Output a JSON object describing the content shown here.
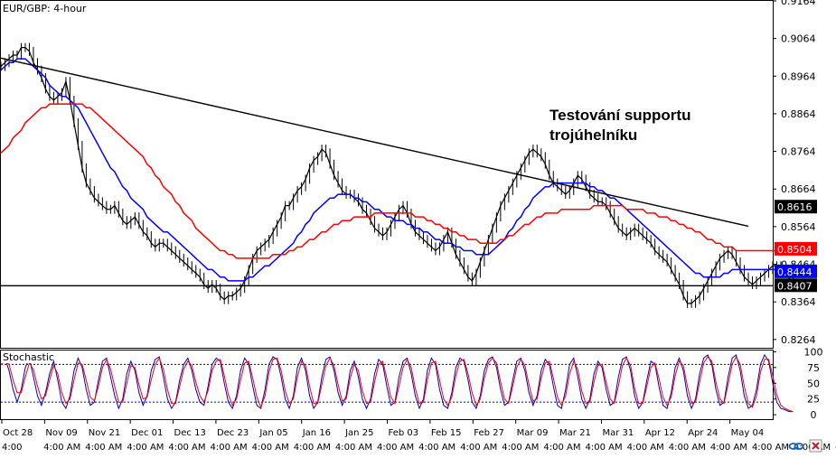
{
  "chart_data": {
    "type": "line",
    "symbol_label": "EUR/GBP: 4-hour",
    "indicator_label": "Stochastic",
    "annotation_lines": [
      "Testování supportu",
      "trojúhelníku"
    ],
    "price_axis": {
      "ticks": [
        0.9164,
        0.9064,
        0.8964,
        0.8864,
        0.8764,
        0.8664,
        0.8564,
        0.8464,
        0.8364,
        0.8264
      ],
      "ylim": [
        0.8242,
        0.9164
      ]
    },
    "stoch_axis": {
      "ticks": [
        100,
        75,
        50,
        25,
        0
      ],
      "levels": [
        80,
        20
      ],
      "ylim": [
        -7,
        102
      ]
    },
    "price_tags": [
      {
        "value": 0.8616,
        "text": "0.8616",
        "color": "#000000"
      },
      {
        "value": 0.8504,
        "text": "0.8504",
        "color": "#ff0000"
      },
      {
        "value": 0.8444,
        "text": "0.8444",
        "color": "#0000ff"
      },
      {
        "value": 0.8407,
        "text": "0.8407",
        "color": "#000000"
      }
    ],
    "date_labels": [
      "Oct 28",
      "Nov 09",
      "Nov 21",
      "Dec 01",
      "Dec 13",
      "Dec 23",
      "Jan 05",
      "Jan 16",
      "Jan 25",
      "Feb 03",
      "Feb 15",
      "Feb 27",
      "Mar 09",
      "Mar 21",
      "Mar 31",
      "Apr 12",
      "Apr 24",
      "May 04"
    ],
    "time_labels": [
      "4:00",
      "4:00 AM",
      "4:00 AM",
      "4:00 AM",
      "4:00 AM",
      "4:00 AM",
      "4:00 AM",
      "4:00 AM",
      "4:00 AM",
      "4:00 AM",
      "4:00 AM",
      "4:00 AM",
      "4:00 AM",
      "4:00 AM",
      "4:00 AM",
      "4:00 AM",
      "4:00 AM",
      "4:00 AM",
      "4:00 AM",
      "4:00 AM",
      "4:00 AM",
      "4:00 AM",
      "4:00 AM",
      "4:00 AM",
      "4:00 AM",
      "4:00 AM",
      "4:00 AM",
      "4:00 AM",
      "4:00 AM",
      "4:00 AM",
      "4:00 AM",
      "4:00 AM",
      "4:00 AM",
      "4:00 AM",
      "4:00 AM",
      "4:00 AM",
      "4:00 AM"
    ],
    "x_range": [
      0,
      190
    ],
    "trendlines": [
      {
        "name": "descending-resistance",
        "color": "#000000",
        "points": [
          [
            0,
            0.9012
          ],
          [
            184,
            0.8565
          ]
        ]
      },
      {
        "name": "horizontal-support",
        "color": "#000000",
        "points": [
          [
            0,
            0.8407
          ],
          [
            190,
            0.8407
          ]
        ]
      }
    ],
    "series": [
      {
        "role": "price",
        "color": "#000000",
        "values": [
          0.899,
          0.9,
          0.901,
          0.902,
          0.902,
          0.904,
          0.904,
          0.903,
          0.9,
          0.898,
          0.896,
          0.893,
          0.891,
          0.89,
          0.891,
          0.892,
          0.895,
          0.89,
          0.884,
          0.878,
          0.872,
          0.868,
          0.866,
          0.864,
          0.863,
          0.862,
          0.861,
          0.861,
          0.862,
          0.86,
          0.858,
          0.857,
          0.858,
          0.859,
          0.857,
          0.855,
          0.854,
          0.852,
          0.851,
          0.852,
          0.852,
          0.851,
          0.85,
          0.849,
          0.848,
          0.847,
          0.846,
          0.845,
          0.844,
          0.843,
          0.841,
          0.84,
          0.841,
          0.84,
          0.838,
          0.837,
          0.838,
          0.838,
          0.839,
          0.84,
          0.842,
          0.845,
          0.848,
          0.85,
          0.851,
          0.852,
          0.853,
          0.855,
          0.857,
          0.859,
          0.862,
          0.862,
          0.864,
          0.866,
          0.867,
          0.869,
          0.872,
          0.874,
          0.875,
          0.877,
          0.876,
          0.873,
          0.87,
          0.868,
          0.866,
          0.865,
          0.865,
          0.864,
          0.863,
          0.861,
          0.86,
          0.858,
          0.856,
          0.855,
          0.854,
          0.855,
          0.857,
          0.859,
          0.861,
          0.862,
          0.86,
          0.857,
          0.855,
          0.854,
          0.853,
          0.852,
          0.851,
          0.85,
          0.851,
          0.853,
          0.855,
          0.852,
          0.849,
          0.847,
          0.845,
          0.843,
          0.842,
          0.844,
          0.847,
          0.85,
          0.853,
          0.856,
          0.859,
          0.862,
          0.864,
          0.866,
          0.868,
          0.87,
          0.872,
          0.874,
          0.876,
          0.877,
          0.876,
          0.875,
          0.873,
          0.87,
          0.868,
          0.867,
          0.866,
          0.865,
          0.866,
          0.868,
          0.87,
          0.869,
          0.867,
          0.865,
          0.864,
          0.863,
          0.863,
          0.862,
          0.86,
          0.858,
          0.856,
          0.855,
          0.854,
          0.855,
          0.856,
          0.855,
          0.854,
          0.853,
          0.852,
          0.85,
          0.849,
          0.848,
          0.847,
          0.845,
          0.843,
          0.841,
          0.838,
          0.836,
          0.836,
          0.837,
          0.838,
          0.84,
          0.842,
          0.844,
          0.846,
          0.848,
          0.849,
          0.85,
          0.849,
          0.847,
          0.845,
          0.843,
          0.842,
          0.841,
          0.842,
          0.843,
          0.844,
          0.845,
          0.846,
          0.846,
          0.845,
          0.844,
          0.843,
          0.841
        ]
      },
      {
        "role": "fast-moving-average",
        "color": "#0000ff",
        "values": [
          0.898,
          0.899,
          0.9,
          0.9,
          0.901,
          0.901,
          0.901,
          0.9,
          0.899,
          0.898,
          0.897,
          0.896,
          0.894,
          0.893,
          0.892,
          0.891,
          0.891,
          0.89,
          0.889,
          0.888,
          0.886,
          0.884,
          0.882,
          0.88,
          0.878,
          0.876,
          0.874,
          0.872,
          0.871,
          0.869,
          0.867,
          0.866,
          0.864,
          0.863,
          0.862,
          0.861,
          0.859,
          0.858,
          0.857,
          0.856,
          0.855,
          0.855,
          0.854,
          0.853,
          0.852,
          0.851,
          0.85,
          0.849,
          0.848,
          0.847,
          0.846,
          0.845,
          0.845,
          0.844,
          0.843,
          0.843,
          0.842,
          0.842,
          0.842,
          0.842,
          0.842,
          0.843,
          0.843,
          0.844,
          0.845,
          0.846,
          0.846,
          0.847,
          0.848,
          0.849,
          0.85,
          0.851,
          0.852,
          0.854,
          0.855,
          0.857,
          0.858,
          0.86,
          0.861,
          0.862,
          0.863,
          0.864,
          0.864,
          0.865,
          0.865,
          0.865,
          0.865,
          0.864,
          0.864,
          0.863,
          0.863,
          0.862,
          0.861,
          0.861,
          0.86,
          0.859,
          0.859,
          0.858,
          0.858,
          0.858,
          0.857,
          0.857,
          0.856,
          0.856,
          0.855,
          0.855,
          0.854,
          0.853,
          0.853,
          0.852,
          0.852,
          0.852,
          0.851,
          0.851,
          0.85,
          0.85,
          0.85,
          0.849,
          0.849,
          0.849,
          0.849,
          0.85,
          0.851,
          0.852,
          0.853,
          0.855,
          0.856,
          0.858,
          0.859,
          0.861,
          0.862,
          0.864,
          0.865,
          0.866,
          0.867,
          0.867,
          0.868,
          0.868,
          0.868,
          0.868,
          0.868,
          0.868,
          0.868,
          0.868,
          0.868,
          0.867,
          0.867,
          0.866,
          0.866,
          0.865,
          0.864,
          0.864,
          0.863,
          0.862,
          0.861,
          0.86,
          0.859,
          0.858,
          0.857,
          0.856,
          0.855,
          0.854,
          0.853,
          0.852,
          0.851,
          0.85,
          0.849,
          0.848,
          0.847,
          0.846,
          0.845,
          0.844,
          0.844,
          0.843,
          0.843,
          0.843,
          0.843,
          0.843,
          0.844,
          0.844,
          0.845,
          0.845,
          0.845,
          0.845,
          0.845,
          0.845,
          0.845,
          0.845,
          0.845,
          0.845,
          0.845,
          0.845,
          0.845,
          0.844,
          0.844,
          0.844,
          0.844
        ]
      },
      {
        "role": "slow-moving-average",
        "color": "#ff0000",
        "values": [
          0.876,
          0.877,
          0.878,
          0.88,
          0.881,
          0.882,
          0.884,
          0.885,
          0.886,
          0.887,
          0.888,
          0.888,
          0.889,
          0.889,
          0.889,
          0.889,
          0.889,
          0.889,
          0.889,
          0.889,
          0.889,
          0.888,
          0.888,
          0.887,
          0.886,
          0.885,
          0.884,
          0.883,
          0.882,
          0.881,
          0.88,
          0.879,
          0.878,
          0.877,
          0.876,
          0.875,
          0.873,
          0.872,
          0.87,
          0.869,
          0.867,
          0.866,
          0.865,
          0.863,
          0.862,
          0.86,
          0.859,
          0.858,
          0.856,
          0.855,
          0.854,
          0.853,
          0.852,
          0.851,
          0.85,
          0.85,
          0.849,
          0.849,
          0.848,
          0.848,
          0.848,
          0.848,
          0.848,
          0.848,
          0.848,
          0.848,
          0.848,
          0.849,
          0.849,
          0.849,
          0.849,
          0.85,
          0.85,
          0.851,
          0.851,
          0.852,
          0.853,
          0.853,
          0.854,
          0.855,
          0.855,
          0.856,
          0.857,
          0.857,
          0.858,
          0.858,
          0.858,
          0.859,
          0.859,
          0.859,
          0.859,
          0.859,
          0.86,
          0.86,
          0.86,
          0.86,
          0.86,
          0.86,
          0.86,
          0.86,
          0.86,
          0.86,
          0.859,
          0.859,
          0.859,
          0.858,
          0.858,
          0.857,
          0.857,
          0.856,
          0.856,
          0.855,
          0.855,
          0.854,
          0.854,
          0.853,
          0.853,
          0.853,
          0.852,
          0.852,
          0.852,
          0.852,
          0.852,
          0.853,
          0.853,
          0.854,
          0.854,
          0.855,
          0.856,
          0.857,
          0.857,
          0.858,
          0.859,
          0.859,
          0.86,
          0.86,
          0.86,
          0.86,
          0.861,
          0.861,
          0.861,
          0.861,
          0.861,
          0.861,
          0.861,
          0.861,
          0.862,
          0.862,
          0.862,
          0.862,
          0.862,
          0.862,
          0.862,
          0.862,
          0.861,
          0.861,
          0.861,
          0.861,
          0.861,
          0.86,
          0.86,
          0.86,
          0.859,
          0.859,
          0.859,
          0.858,
          0.858,
          0.857,
          0.857,
          0.856,
          0.856,
          0.855,
          0.855,
          0.854,
          0.853,
          0.853,
          0.852,
          0.852,
          0.851,
          0.851,
          0.851,
          0.85,
          0.85,
          0.85,
          0.85,
          0.85,
          0.85,
          0.85,
          0.85,
          0.85,
          0.85,
          0.85,
          0.85,
          0.85,
          0.85,
          0.85,
          0.85,
          0.85,
          0.85
        ]
      },
      {
        "role": "stochastic-k",
        "color": "#0000cc",
        "values": [
          85,
          90,
          70,
          40,
          20,
          40,
          75,
          90,
          60,
          30,
          15,
          35,
          65,
          85,
          55,
          20,
          10,
          30,
          70,
          90,
          75,
          40,
          15,
          20,
          55,
          85,
          90,
          60,
          30,
          10,
          25,
          65,
          85,
          70,
          35,
          15,
          30,
          70,
          88,
          92,
          60,
          25,
          10,
          20,
          55,
          80,
          90,
          70,
          40,
          20,
          15,
          45,
          80,
          90,
          85,
          50,
          20,
          10,
          30,
          70,
          90,
          80,
          45,
          15,
          10,
          40,
          80,
          92,
          88,
          60,
          25,
          10,
          30,
          75,
          90,
          70,
          30,
          10,
          20,
          60,
          88,
          92,
          70,
          35,
          15,
          30,
          70,
          85,
          60,
          25,
          10,
          25,
          65,
          88,
          80,
          45,
          15,
          20,
          60,
          85,
          90,
          65,
          30,
          10,
          25,
          70,
          90,
          80,
          40,
          15,
          10,
          35,
          75,
          90,
          85,
          55,
          20,
          10,
          30,
          70,
          88,
          92,
          75,
          40,
          15,
          20,
          55,
          85,
          90,
          70,
          35,
          15,
          30,
          70,
          88,
          80,
          45,
          15,
          10,
          40,
          80,
          90,
          60,
          25,
          10,
          25,
          65,
          85,
          75,
          40,
          15,
          20,
          60,
          88,
          92,
          70,
          30,
          10,
          20,
          55,
          85,
          80,
          45,
          15,
          10,
          35,
          75,
          90,
          70,
          30,
          10,
          25,
          65,
          90,
          95,
          80,
          40,
          15,
          20,
          60,
          90,
          95,
          70,
          30,
          10,
          15,
          40,
          80,
          95,
          85,
          50,
          20,
          10,
          8,
          5,
          5
        ]
      },
      {
        "role": "stochastic-d",
        "color": "#ff0000",
        "values": [
          80,
          85,
          80,
          55,
          35,
          35,
          60,
          82,
          72,
          45,
          25,
          30,
          55,
          78,
          65,
          35,
          18,
          25,
          55,
          82,
          80,
          55,
          28,
          22,
          45,
          75,
          88,
          72,
          45,
          20,
          20,
          50,
          78,
          75,
          48,
          25,
          28,
          55,
          80,
          90,
          72,
          40,
          18,
          18,
          45,
          72,
          85,
          78,
          52,
          30,
          20,
          38,
          70,
          85,
          88,
          62,
          32,
          15,
          25,
          55,
          82,
          85,
          58,
          28,
          12,
          30,
          68,
          88,
          90,
          70,
          38,
          18,
          25,
          60,
          85,
          78,
          45,
          18,
          18,
          48,
          78,
          90,
          78,
          48,
          22,
          25,
          58,
          80,
          70,
          38,
          18,
          20,
          52,
          80,
          85,
          58,
          28,
          18,
          45,
          75,
          88,
          75,
          42,
          18,
          20,
          55,
          82,
          85,
          55,
          25,
          15,
          28,
          62,
          85,
          88,
          65,
          35,
          15,
          25,
          58,
          82,
          90,
          82,
          52,
          25,
          18,
          45,
          75,
          88,
          78,
          48,
          22,
          25,
          58,
          82,
          85,
          58,
          28,
          15,
          30,
          65,
          85,
          72,
          38,
          18,
          20,
          52,
          78,
          80,
          52,
          25,
          18,
          45,
          78,
          90,
          78,
          42,
          18,
          18,
          45,
          75,
          82,
          58,
          28,
          15,
          28,
          62,
          85,
          78,
          45,
          18,
          20,
          52,
          82,
          92,
          85,
          52,
          25,
          18,
          48,
          80,
          92,
          80,
          45,
          18,
          12,
          30,
          68,
          88,
          88,
          62,
          32,
          15,
          10,
          7,
          5
        ]
      }
    ]
  }
}
